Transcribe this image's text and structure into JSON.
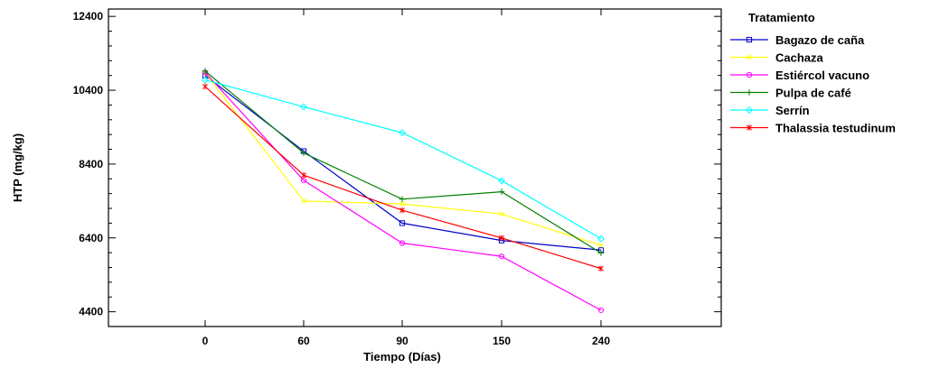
{
  "chart_data": {
    "type": "line",
    "xlabel": "Tiempo (Días)",
    "ylabel": "HTP (mg/kg)",
    "categories": [
      "0",
      "60",
      "90",
      "150",
      "240"
    ],
    "yticks": [
      4400,
      6400,
      8400,
      10400,
      12400
    ],
    "ylim": [
      4000,
      12600
    ],
    "grid": false,
    "legend": {
      "title": "Tratamiento",
      "placement": "right"
    },
    "series": [
      {
        "name": "Bagazo de caña",
        "color": "#0000cc",
        "marker": "square",
        "values": [
          10800,
          8750,
          6800,
          6330,
          6070
        ]
      },
      {
        "name": "Cachaza",
        "color": "#ffff00",
        "marker": "x",
        "values": [
          10870,
          7400,
          7320,
          7050,
          6200
        ]
      },
      {
        "name": "Estiércol vacuno",
        "color": "#ff00ff",
        "marker": "circle",
        "values": [
          10880,
          7960,
          6260,
          5900,
          4440
        ]
      },
      {
        "name": "Pulpa de café",
        "color": "#008000",
        "marker": "plus",
        "values": [
          10920,
          8700,
          7450,
          7650,
          5990
        ]
      },
      {
        "name": "Serrín",
        "color": "#00ffff",
        "marker": "diamond",
        "values": [
          10680,
          9950,
          9250,
          7950,
          6380
        ]
      },
      {
        "name": "Thalassia testudinum",
        "color": "#ff0000",
        "marker": "star",
        "values": [
          10500,
          8100,
          7150,
          6400,
          5570
        ]
      }
    ]
  }
}
